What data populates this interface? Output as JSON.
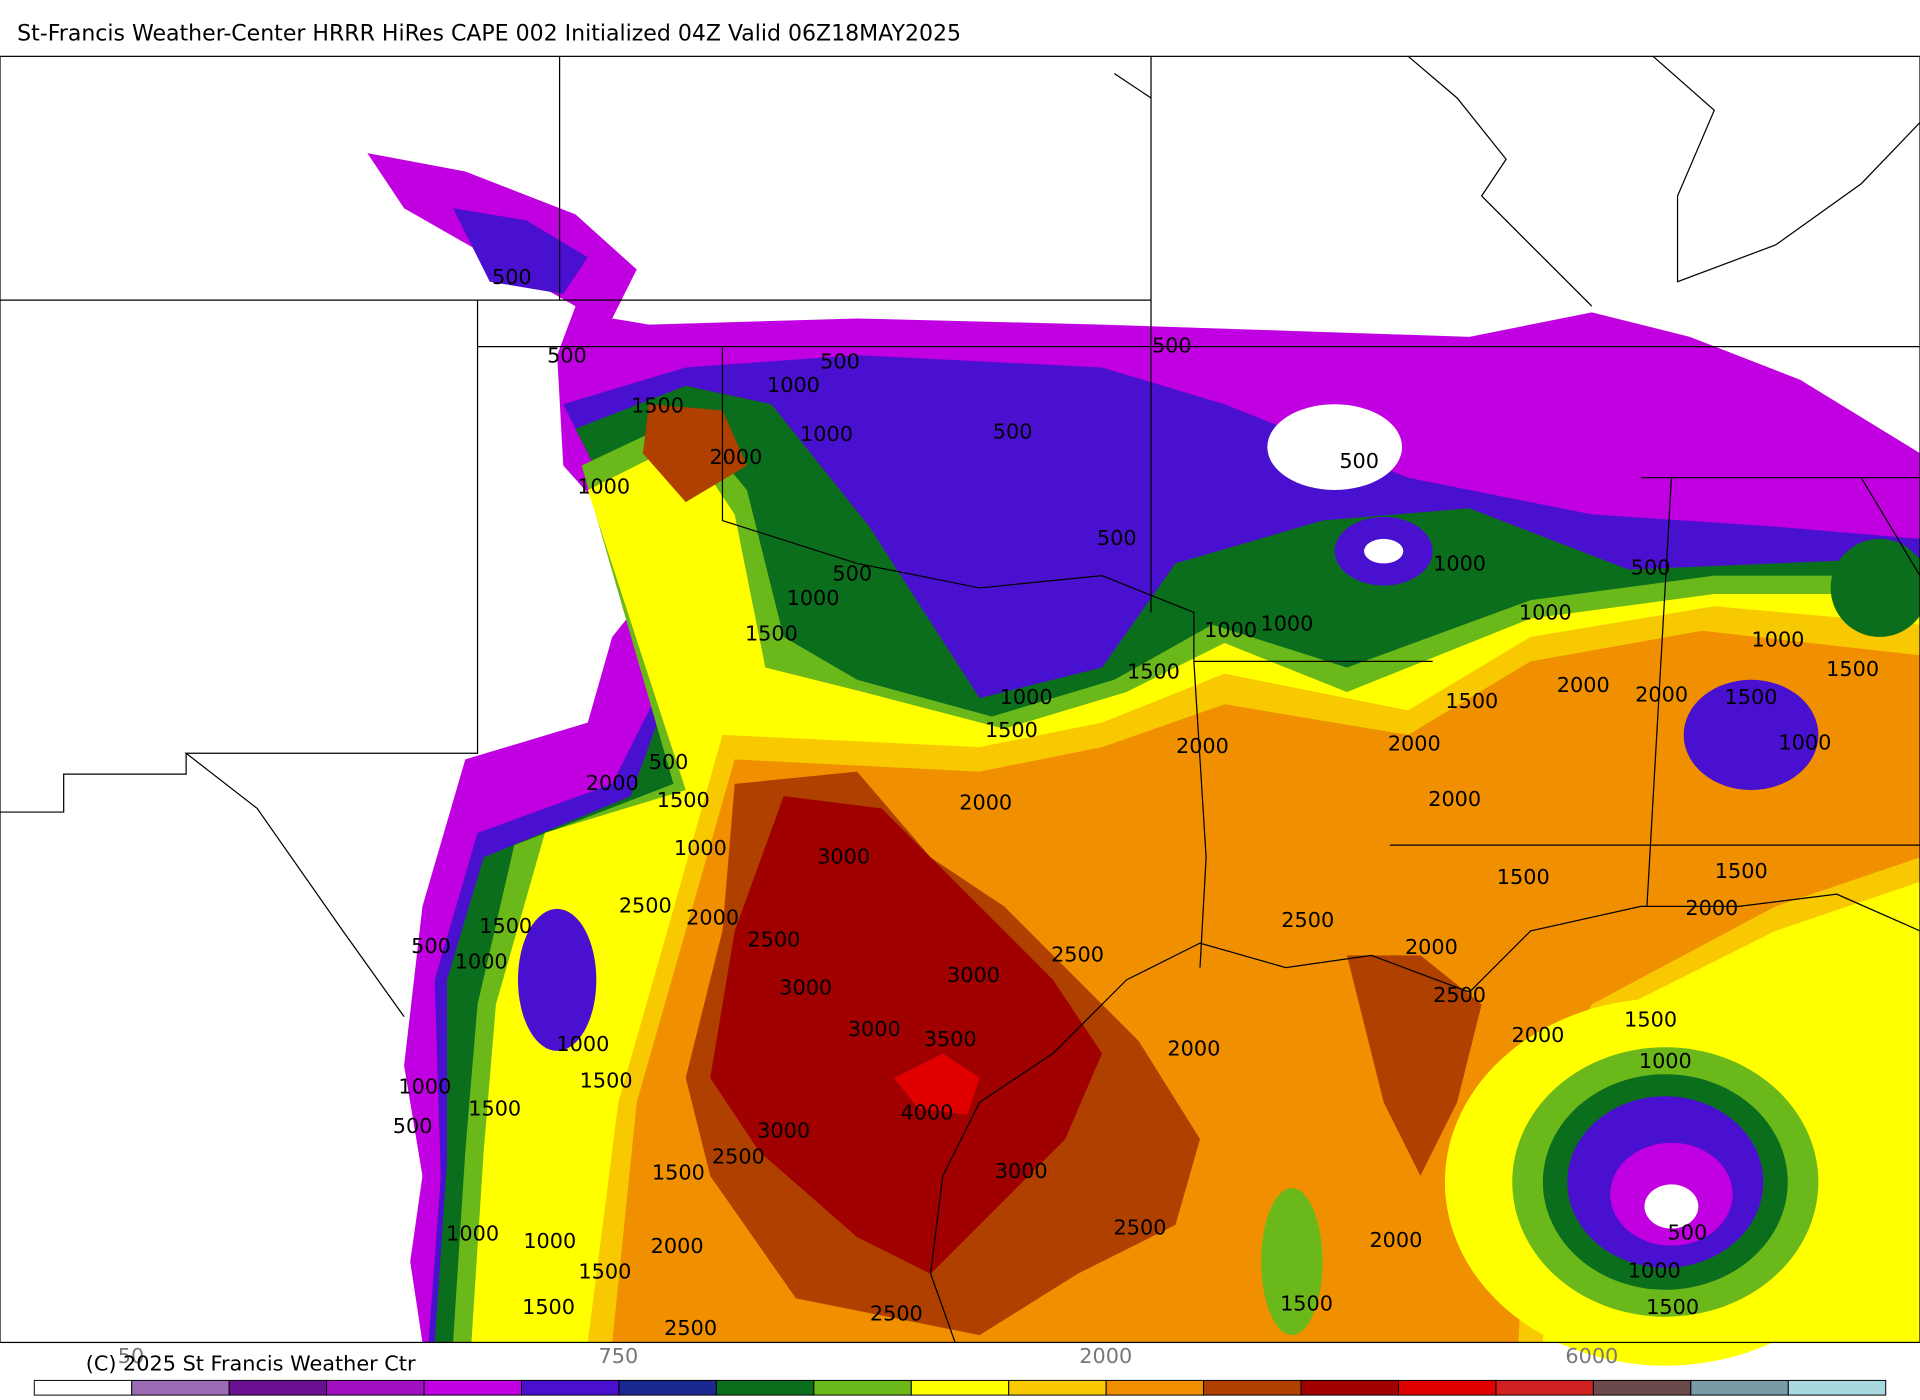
{
  "header": {
    "title": "St-Francis Weather-Center HRRR HiRes CAPE  002 Initialized  04Z Valid 06Z18MAY2025"
  },
  "contour_labels": [
    500,
    500,
    500,
    1000,
    1500,
    2000,
    1000,
    500,
    1000,
    500,
    500,
    500,
    500,
    1000,
    1500,
    1000,
    1000,
    500,
    1000,
    1000,
    1500,
    1000,
    1500,
    2000,
    2000,
    1500,
    1500,
    1000,
    1500,
    2000,
    2000,
    1000,
    500,
    2000,
    1500,
    2000,
    2000,
    1000,
    3000,
    1500,
    1500,
    2000,
    2500,
    2000,
    2500,
    1500,
    500,
    1000,
    2500,
    2500,
    3000,
    2000,
    3000,
    2500,
    1500,
    3000,
    3500,
    2000,
    1000,
    2000,
    1000,
    1500,
    1000,
    4000,
    1500,
    500,
    3000,
    2500,
    1500,
    3000,
    2500,
    500,
    1000,
    1000,
    2000,
    2000,
    1500,
    1000,
    1500,
    1500,
    1500,
    2500,
    2500
  ],
  "colorbar": {
    "colors": [
      "#ffffff",
      "#9b6bb5",
      "#6b1090",
      "#a010c0",
      "#c000e0",
      "#4a10d0",
      "#1a2890",
      "#0b6e1c",
      "#6ab81a",
      "#ffff00",
      "#f8c800",
      "#f09000",
      "#b04000",
      "#a00000",
      "#e00000",
      "#d02020",
      "#6a4a4a",
      "#7a9aa8",
      "#a8d8e0"
    ],
    "labels": [
      "50",
      "750",
      "2000",
      "6000"
    ]
  },
  "footer": {
    "copyright": "(C) 2025 St Francis Weather Ctr"
  }
}
